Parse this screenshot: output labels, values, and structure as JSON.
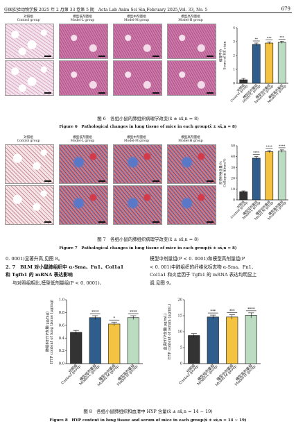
{
  "header": {
    "journal_left": "中国实验动物学报 2025 年 2 月第 33 卷第 5 期　Acta Lab Anim Sci Sin,February 2025,Vol. 33, No. 5",
    "page_number": "679"
  },
  "figure6": {
    "groups": [
      {
        "cn": "对照组",
        "en": "Control group"
      },
      {
        "cn": "模型低剂量组",
        "en": "Model-L group"
      },
      {
        "cn": "模型中剂量组",
        "en": "Model-M group"
      },
      {
        "cn": "模型高剂量组",
        "en": "Model-H group"
      }
    ],
    "caption_cn": "图 6　各组小鼠的肺组织病理学改变(x̄ ± sx̄,n = 8)",
    "caption_en": "Figure 6　Pathological changes in lung tissue of mice in each group(x̄ ± sx̄,n = 8)"
  },
  "figure7": {
    "groups": [
      {
        "cn": "对照组",
        "en": "Control group"
      },
      {
        "cn": "模型低剂量组",
        "en": "Model-L group"
      },
      {
        "cn": "模型中剂量组",
        "en": "Model-M group"
      },
      {
        "cn": "模型高剂量组",
        "en": "Model-H group"
      }
    ],
    "caption_cn": "图 7　各组小鼠的肺组织病理学改变(x̄ ± sx̄,n = 8)",
    "caption_en": "Figure 7　Pathological changes in lung tissue of mice in each group(x̄ ± sx̄,n = 8)"
  },
  "text": {
    "left_line1": "0. 0001)显著升高,见图 8。",
    "section_heading_line1": "2. 7　BLM 对小鼠肺组织中 α-Sma、Fn1、Col1a1",
    "section_heading_line2": "和 Tgfb1 的 mRNA 表达影响",
    "left_para": "与对照组相比,模型低剂量组(P < 0. 0001)、",
    "right_line1": "模型中剂量组(P < 0. 0001)和模型高剂量组(P",
    "right_line2": "< 0. 001)中肺组织的纤维化标志物 α-Sma、Fn1、",
    "right_line3": "Col1a1 和炎症因子 Tgfb1 的 mRNA 表达均明显上",
    "right_line4": "调,见图 9。"
  },
  "figure8": {
    "caption_cn": "图 8　各组小鼠肺组织和血清中 HYP 含量(x̄ ± sx̄,n = 14 ~ 19)",
    "caption_en": "Figure 8　HYP content in lung tissue and serum of mice in each group(x̄ ± sx̄,n = 14 ~ 19)"
  },
  "chart_data": [
    {
      "id": "fig6-score",
      "type": "bar",
      "ylabel": "病理学分 Score of HE stain",
      "ylim": [
        0,
        4
      ],
      "yticks": [
        0,
        1,
        2,
        3,
        4
      ],
      "categories": [
        "对照组 Control group",
        "模型低剂量组 Model-L group",
        "模型中剂量组 Model-M group",
        "模型高剂量组 Model-H group"
      ],
      "values": [
        0.25,
        2.8,
        2.9,
        2.95
      ],
      "errors": [
        0.1,
        0.1,
        0.08,
        0.08
      ],
      "significance": [
        "",
        "**",
        "***",
        "***"
      ],
      "colors": [
        "#333333",
        "#2f5d8c",
        "#f3c341",
        "#bcdcc1"
      ]
    },
    {
      "id": "fig7-collagen",
      "type": "bar",
      "ylabel": "胶原纤维含量/% Collagen fibers/%",
      "ylim": [
        0,
        50
      ],
      "yticks": [
        0,
        10,
        20,
        30,
        40,
        50
      ],
      "categories": [
        "对照组 Control group",
        "模型低剂量组 Model-L group",
        "模型中剂量组 Model-M group",
        "模型高剂量组 Model-H group"
      ],
      "values": [
        7.5,
        38.5,
        44.5,
        45
      ],
      "errors": [
        0.8,
        1.5,
        1.0,
        1.2
      ],
      "significance": [
        "",
        "****",
        "****",
        "****"
      ],
      "colors": [
        "#333333",
        "#2f5d8c",
        "#f3c341",
        "#bcdcc1"
      ]
    },
    {
      "id": "fig8-lung",
      "type": "bar",
      "ylabel": "肺组织HYP含量(μg/mg) HYP content of lung tissue (μg/mg)",
      "ylim": [
        0,
        1.0
      ],
      "yticks": [
        0.0,
        0.2,
        0.4,
        0.6,
        0.8,
        1.0
      ],
      "categories": [
        "对照组 Control group",
        "模型低剂量组 Model-L group",
        "模型中剂量组 Model-M group",
        "模型高剂量组 Model-H group"
      ],
      "values": [
        0.49,
        0.72,
        0.62,
        0.72
      ],
      "errors": [
        0.03,
        0.03,
        0.03,
        0.03
      ],
      "significance": [
        "",
        "****",
        "*",
        "****"
      ],
      "colors": [
        "#333333",
        "#2f5d8c",
        "#f3c341",
        "#bcdcc1"
      ]
    },
    {
      "id": "fig8-serum",
      "type": "bar",
      "ylabel": "血清HYP含量(μg/mL) HYP content of serum (μg/mL)",
      "ylim": [
        0,
        20
      ],
      "yticks": [
        0,
        5,
        10,
        15,
        20
      ],
      "categories": [
        "对照组 Control group",
        "模型低剂量组 Model-L group",
        "模型中剂量组 Model-M group",
        "模型高剂量组 Model-H group"
      ],
      "values": [
        8.8,
        14.6,
        14.6,
        15.1
      ],
      "errors": [
        0.6,
        0.6,
        0.7,
        0.8
      ],
      "significance": [
        "",
        "***",
        "***",
        "****"
      ],
      "colors": [
        "#333333",
        "#2f5d8c",
        "#f3c341",
        "#bcdcc1"
      ]
    }
  ]
}
